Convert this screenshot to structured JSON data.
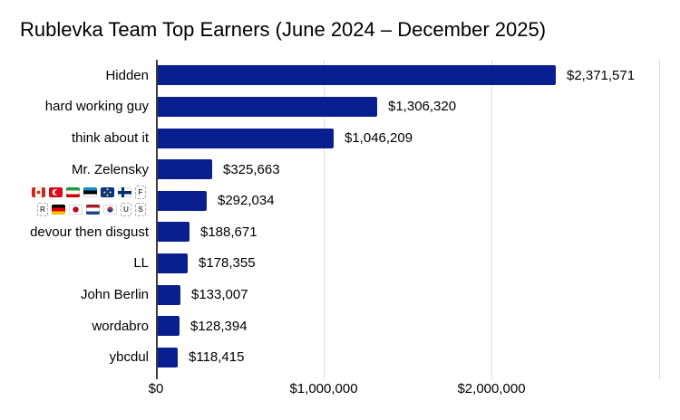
{
  "colors": {
    "bar": "#0a1f8f",
    "axis_line": "#3c3c3c",
    "gridline": "#d9d9d9",
    "text": "#000000",
    "background": "#ffffff"
  },
  "chart_data": {
    "type": "bar",
    "orientation": "horizontal",
    "title": "Rublevka Team Top Earners (June 2024 – December 2025)",
    "categories": [
      "Hidden",
      "hard working guy",
      "think about it",
      "Mr. Zelensky",
      "🇨🇦🇹🇷🇮🇷🇪🇪🇪🇺🇫🇮🇫🇷🇩🇪🇯🇵🇳🇱🇰🇷🇺🇸",
      "devour then disgust",
      "LL",
      "John Berlin",
      "wordabro",
      "ybcdul"
    ],
    "values": [
      2371571,
      1306320,
      1046209,
      325663,
      292034,
      188671,
      178355,
      133007,
      128394,
      118415
    ],
    "value_labels": [
      "$2,371,571",
      "$1,306,320",
      "$1,046,209",
      "$325,663",
      "$292,034",
      "$188,671",
      "$178,355",
      "$133,007",
      "$128,394",
      "$118,415"
    ],
    "x_ticks": [
      {
        "value": 0,
        "label": "$0"
      },
      {
        "value": 1000000,
        "label": "$1,000,000"
      },
      {
        "value": 2000000,
        "label": "$2,000,000"
      }
    ],
    "xlim": [
      0,
      3000000
    ],
    "grid": true,
    "legend": "none",
    "flag_category_index": 4,
    "flag_rows": [
      [
        {
          "flag": "CA"
        },
        {
          "flag": "TR"
        },
        {
          "flag": "IR"
        },
        {
          "flag": "EE"
        },
        {
          "flag": "EU"
        },
        {
          "flag": "FI"
        },
        {
          "letter": "F"
        }
      ],
      [
        {
          "letter": "R"
        },
        {
          "flag": "DE"
        },
        {
          "flag": "JP"
        },
        {
          "flag": "NL"
        },
        {
          "flag": "KR"
        },
        {
          "letter": "U"
        },
        {
          "letter": "S"
        }
      ]
    ]
  }
}
